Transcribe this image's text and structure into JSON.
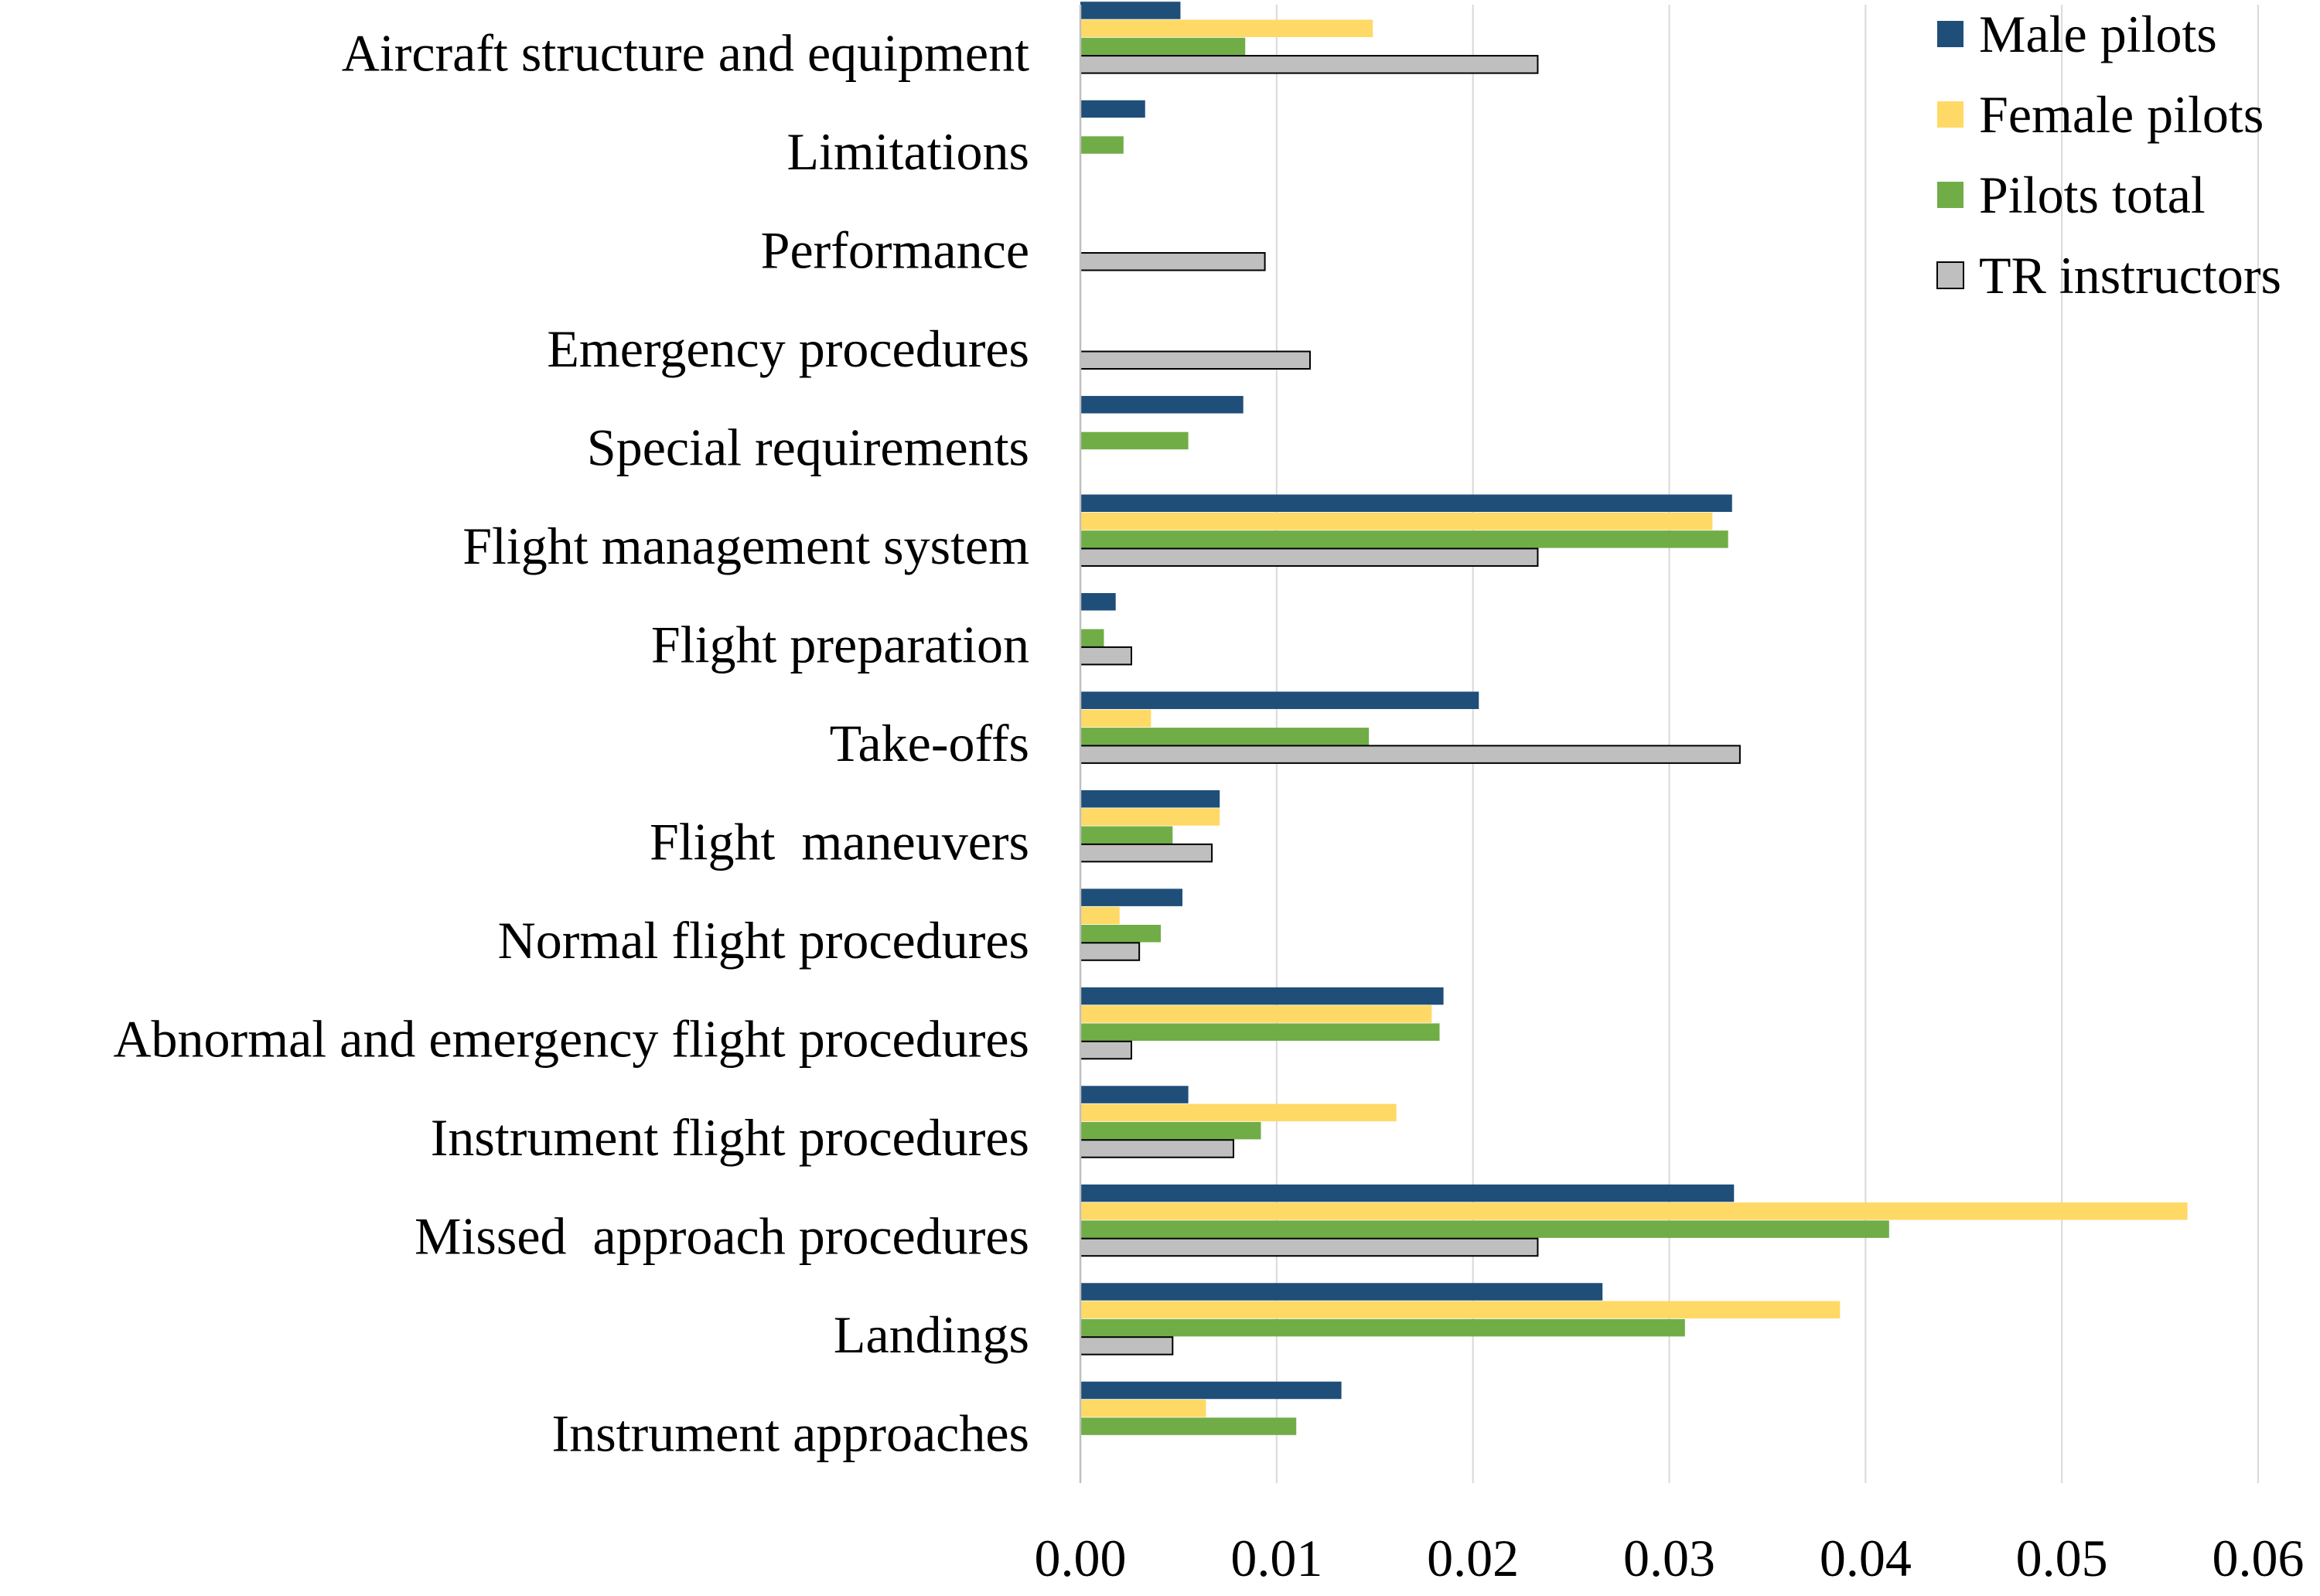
{
  "chart_data": {
    "type": "bar",
    "orientation": "horizontal",
    "title": "",
    "xlabel": "",
    "ylabel": "",
    "xlim": [
      0,
      0.06
    ],
    "x_ticks": [
      "0.00",
      "0.01",
      "0.02",
      "0.03",
      "0.04",
      "0.05",
      "0.06"
    ],
    "x_tick_values": [
      0,
      0.01,
      0.02,
      0.03,
      0.04,
      0.05,
      0.06
    ],
    "grid": "vertical",
    "legend_position": "top-right",
    "categories": [
      "Aircraft structure and equipment",
      "Limitations",
      "Performance",
      "Emergency procedures",
      "Special requirements",
      "Flight management system",
      "Flight preparation",
      "Take-offs",
      "Flight  maneuvers",
      "Normal flight procedures",
      "Abnormal and emergency flight procedures",
      "Instrument flight procedures",
      "Missed  approach procedures",
      "Landings",
      "Instrument approaches"
    ],
    "series": [
      {
        "name": "Male pilots",
        "color": "#1f4e79",
        "values": [
          0.0051,
          0.0033,
          0,
          0,
          0.0083,
          0.0332,
          0.0018,
          0.0203,
          0.0071,
          0.0052,
          0.0185,
          0.0055,
          0.0333,
          0.0266,
          0.0133
        ]
      },
      {
        "name": "Female pilots",
        "color": "#ffd966",
        "values": [
          0.0149,
          0,
          0,
          0,
          0,
          0.0322,
          0,
          0.0036,
          0.0071,
          0.002,
          0.0179,
          0.0161,
          0.0564,
          0.0387,
          0.0064
        ]
      },
      {
        "name": "Pilots total",
        "color": "#70ad47",
        "values": [
          0.0084,
          0.0022,
          0,
          0,
          0.0055,
          0.033,
          0.0012,
          0.0147,
          0.0047,
          0.0041,
          0.0183,
          0.0092,
          0.0412,
          0.0308,
          0.011
        ]
      },
      {
        "name": "TR instructors",
        "color": "#bfbfbf",
        "border": "#000000",
        "values": [
          0.0233,
          0,
          0.0094,
          0.0117,
          0,
          0.0233,
          0.0026,
          0.0336,
          0.0067,
          0.003,
          0.0026,
          0.0078,
          0.0233,
          0.0047,
          0
        ]
      }
    ]
  }
}
